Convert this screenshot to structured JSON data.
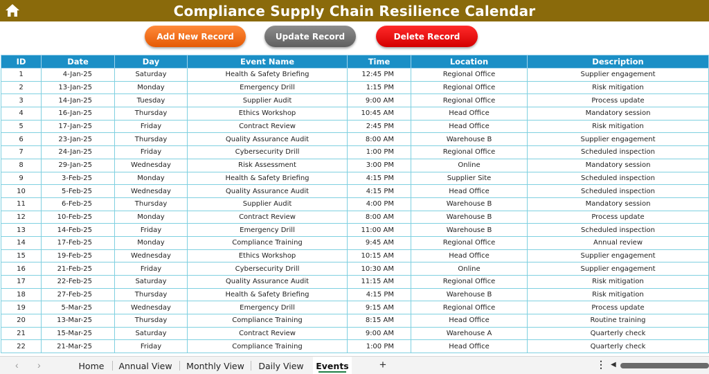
{
  "header": {
    "title": "Compliance Supply Chain Resilience Calendar",
    "icon": "home-icon",
    "color": "#8a6a0b"
  },
  "actions": {
    "add_label": "Add New Record",
    "update_label": "Update Record",
    "delete_label": "Delete Record"
  },
  "table": {
    "columns": [
      "ID",
      "Date",
      "Day",
      "Event Name",
      "Time",
      "Location",
      "Description"
    ],
    "rows": [
      [
        "1",
        "4-Jan-25",
        "Saturday",
        "Health & Safety Briefing",
        "12:45 PM",
        "Regional Office",
        "Supplier engagement"
      ],
      [
        "2",
        "13-Jan-25",
        "Monday",
        "Emergency Drill",
        "1:15 PM",
        "Regional Office",
        "Risk mitigation"
      ],
      [
        "3",
        "14-Jan-25",
        "Tuesday",
        "Supplier Audit",
        "9:00 AM",
        "Regional Office",
        "Process update"
      ],
      [
        "4",
        "16-Jan-25",
        "Thursday",
        "Ethics Workshop",
        "10:45 AM",
        "Head Office",
        "Mandatory session"
      ],
      [
        "5",
        "17-Jan-25",
        "Friday",
        "Contract Review",
        "2:45 PM",
        "Head Office",
        "Risk mitigation"
      ],
      [
        "6",
        "23-Jan-25",
        "Thursday",
        "Quality Assurance Audit",
        "8:00 AM",
        "Warehouse B",
        "Supplier engagement"
      ],
      [
        "7",
        "24-Jan-25",
        "Friday",
        "Cybersecurity Drill",
        "1:00 PM",
        "Regional Office",
        "Scheduled inspection"
      ],
      [
        "8",
        "29-Jan-25",
        "Wednesday",
        "Risk Assessment",
        "3:00 PM",
        "Online",
        "Mandatory session"
      ],
      [
        "9",
        "3-Feb-25",
        "Monday",
        "Health & Safety Briefing",
        "4:15 PM",
        "Supplier Site",
        "Scheduled inspection"
      ],
      [
        "10",
        "5-Feb-25",
        "Wednesday",
        "Quality Assurance Audit",
        "4:15 PM",
        "Head Office",
        "Scheduled inspection"
      ],
      [
        "11",
        "6-Feb-25",
        "Thursday",
        "Supplier Audit",
        "4:00 PM",
        "Warehouse B",
        "Mandatory session"
      ],
      [
        "12",
        "10-Feb-25",
        "Monday",
        "Contract Review",
        "8:00 AM",
        "Warehouse B",
        "Process update"
      ],
      [
        "13",
        "14-Feb-25",
        "Friday",
        "Emergency Drill",
        "11:00 AM",
        "Warehouse B",
        "Scheduled inspection"
      ],
      [
        "14",
        "17-Feb-25",
        "Monday",
        "Compliance Training",
        "9:45 AM",
        "Regional Office",
        "Annual review"
      ],
      [
        "15",
        "19-Feb-25",
        "Wednesday",
        "Ethics Workshop",
        "10:15 AM",
        "Head Office",
        "Supplier engagement"
      ],
      [
        "16",
        "21-Feb-25",
        "Friday",
        "Cybersecurity Drill",
        "10:30 AM",
        "Online",
        "Supplier engagement"
      ],
      [
        "17",
        "22-Feb-25",
        "Saturday",
        "Quality Assurance Audit",
        "11:15 AM",
        "Regional Office",
        "Risk mitigation"
      ],
      [
        "18",
        "27-Feb-25",
        "Thursday",
        "Health & Safety Briefing",
        "4:15 PM",
        "Warehouse B",
        "Risk mitigation"
      ],
      [
        "19",
        "5-Mar-25",
        "Wednesday",
        "Emergency Drill",
        "9:15 AM",
        "Regional Office",
        "Process update"
      ],
      [
        "20",
        "13-Mar-25",
        "Thursday",
        "Compliance Training",
        "8:15 AM",
        "Head Office",
        "Routine training"
      ],
      [
        "21",
        "15-Mar-25",
        "Saturday",
        "Contract Review",
        "9:00 AM",
        "Warehouse A",
        "Quarterly check"
      ],
      [
        "22",
        "21-Mar-25",
        "Friday",
        "Compliance Training",
        "1:00 PM",
        "Head Office",
        "Quarterly check"
      ]
    ]
  },
  "tabs": {
    "prev_icon": "chevron-left-icon",
    "next_icon": "chevron-right-icon",
    "items": [
      "Home",
      "Annual View",
      "Monthly View",
      "Daily View",
      "Events"
    ],
    "active": "Events",
    "add_label": "+",
    "more_label": "⋮"
  },
  "colors": {
    "header_bg": "#1b8fc6",
    "grid_line": "#7fd0e0",
    "add_button": "#f06a12",
    "update_button": "#777777",
    "delete_button": "#e60000",
    "active_tab_underline": "#1e7e44"
  }
}
